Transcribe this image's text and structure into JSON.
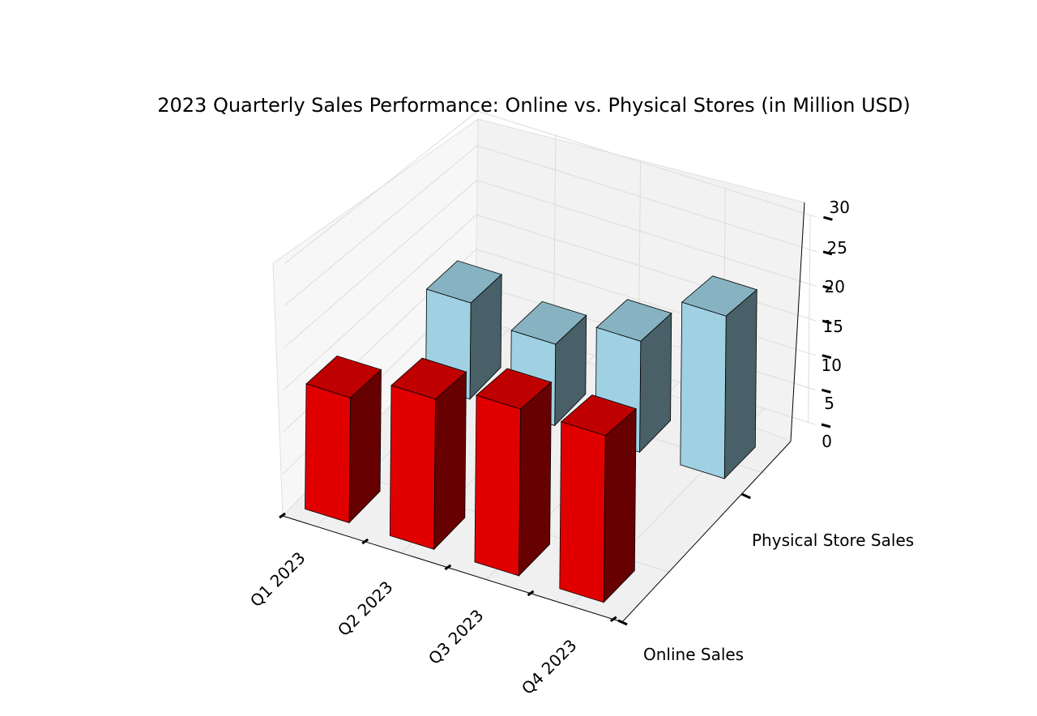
{
  "chart_data": {
    "type": "bar",
    "projection": "3d",
    "title": "2023 Quarterly Sales Performance: Online vs. Physical Stores (in Million USD)",
    "categories": [
      "Q1 2023",
      "Q2 2023",
      "Q3 2023",
      "Q4 2023"
    ],
    "series": [
      {
        "name": "Online Sales",
        "values": [
          15,
          18,
          20,
          20
        ],
        "color": "#e00000"
      },
      {
        "name": "Physical Store Sales",
        "values": [
          13,
          11,
          15,
          22
        ],
        "color": "#9fd1e3"
      }
    ],
    "zlim": [
      0,
      30
    ],
    "zticks": [
      "0",
      "5",
      "10",
      "15",
      "20",
      "25",
      "30"
    ],
    "grid": true,
    "legend": "none"
  }
}
